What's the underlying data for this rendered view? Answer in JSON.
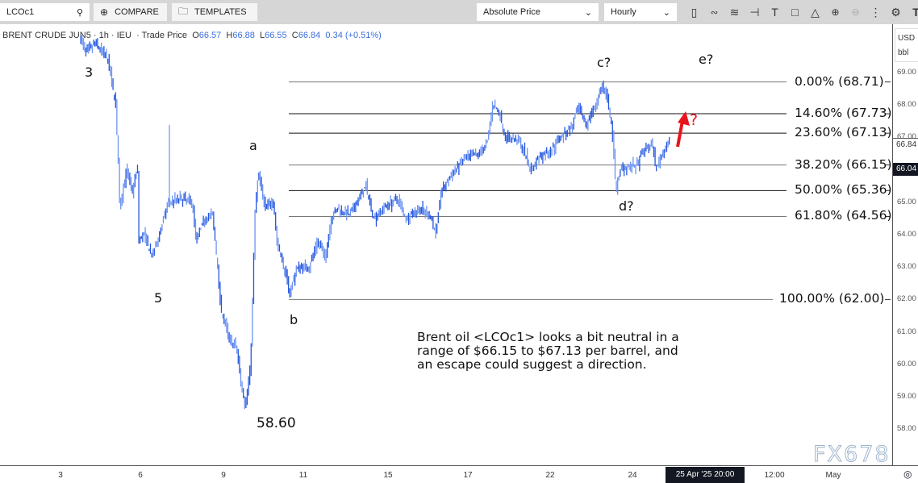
{
  "toolbar": {
    "symbol_value": "LCOc1",
    "compare_label": "COMPARE",
    "templates_label": "TEMPLATES",
    "price_mode": "Absolute Price",
    "interval": "Hourly",
    "tool_icons": [
      "candlestick-icon",
      "indicators-icon",
      "studies-icon",
      "drawing-icon",
      "text-icon",
      "shapes-icon",
      "pattern-icon",
      "zoom-in-icon",
      "zoom-out-icon",
      "more-icon",
      "settings-icon",
      "logo-icon"
    ]
  },
  "legend": {
    "name": "BRENT CRUDE JUN5",
    "interval": "1h",
    "exchange": "IEU",
    "price_type": "Trade Price",
    "open_label": "O",
    "open": "66.57",
    "high_label": "H",
    "high": "66.88",
    "low_label": "L",
    "low": "66.55",
    "close_label": "C",
    "close": "66.84",
    "change": "0.34 (+0.51%)"
  },
  "colors": {
    "candle": "#2456e0",
    "candle_light": "#6d93f2",
    "fib_dark": "#111111",
    "fib_grey": "#777777",
    "arrow": "#e8141b",
    "last_price_badge": "#131722"
  },
  "chart_data": {
    "type": "candlestick",
    "ylim": [
      57.5,
      70.2
    ],
    "y_ticks": [
      "69.00",
      "68.00",
      "67.00",
      "65.00",
      "64.00",
      "63.00",
      "62.00",
      "61.00",
      "60.00",
      "59.00",
      "58.00"
    ],
    "y_unit": "USD",
    "y_unit2": "bbl",
    "last_price": "66.84",
    "crosshair_price": "66.04",
    "x_ticks": [
      "3",
      "6",
      "9",
      "11",
      "15",
      "17",
      "22",
      "24",
      "12:00",
      "May"
    ],
    "crosshair_time": "25 Apr '25  20:00",
    "price_path_approx": [
      [
        3.76,
        70.1
      ],
      [
        4.0,
        69.6
      ],
      [
        4.36,
        69.9
      ],
      [
        4.82,
        69.4
      ],
      [
        5.12,
        68.0
      ],
      [
        5.21,
        66.3
      ],
      [
        5.27,
        64.8
      ],
      [
        5.52,
        66.0
      ],
      [
        5.73,
        65.3
      ],
      [
        5.94,
        66.1
      ],
      [
        5.97,
        63.8
      ],
      [
        6.17,
        64.0
      ],
      [
        6.47,
        63.3
      ],
      [
        6.76,
        64.1
      ],
      [
        7.05,
        65.0
      ],
      [
        7.48,
        65.1
      ],
      [
        7.92,
        65.0
      ],
      [
        8.06,
        63.8
      ],
      [
        8.36,
        64.5
      ],
      [
        8.65,
        64.6
      ],
      [
        8.8,
        63.3
      ],
      [
        8.94,
        61.8
      ],
      [
        9.16,
        60.8
      ],
      [
        9.36,
        60.5
      ],
      [
        9.46,
        59.5
      ],
      [
        9.57,
        58.7
      ],
      [
        9.71,
        60.0
      ],
      [
        9.83,
        65.0
      ],
      [
        9.91,
        65.9
      ],
      [
        10.07,
        64.8
      ],
      [
        10.27,
        65.1
      ],
      [
        10.37,
        63.8
      ],
      [
        10.58,
        62.8
      ],
      [
        10.68,
        62.2
      ],
      [
        10.88,
        63.0
      ],
      [
        11.34,
        63.0
      ],
      [
        11.72,
        63.8
      ],
      [
        12.1,
        63.3
      ],
      [
        12.37,
        64.5
      ],
      [
        12.68,
        64.8
      ],
      [
        13.25,
        64.6
      ],
      [
        14.01,
        65.5
      ],
      [
        14.39,
        64.5
      ],
      [
        14.96,
        64.9
      ],
      [
        15.28,
        65.1
      ],
      [
        15.48,
        64.5
      ],
      [
        15.79,
        64.8
      ],
      [
        16.09,
        64.6
      ],
      [
        16.23,
        64.0
      ],
      [
        16.35,
        65.3
      ],
      [
        16.6,
        65.8
      ],
      [
        16.9,
        66.3
      ],
      [
        17.74,
        66.5
      ],
      [
        18.23,
        66.8
      ],
      [
        18.57,
        68.0
      ],
      [
        18.96,
        67.8
      ],
      [
        19.35,
        67.0
      ],
      [
        20.19,
        66.9
      ],
      [
        20.92,
        66.0
      ],
      [
        21.41,
        66.4
      ],
      [
        22.06,
        66.6
      ],
      [
        22.25,
        67.0
      ],
      [
        22.55,
        67.3
      ],
      [
        22.71,
        67.9
      ],
      [
        22.9,
        67.4
      ],
      [
        23.1,
        67.9
      ],
      [
        23.29,
        68.6
      ],
      [
        23.43,
        68.1
      ],
      [
        23.53,
        67.3
      ],
      [
        23.63,
        65.4
      ],
      [
        23.76,
        66.1
      ],
      [
        24.13,
        66.1
      ],
      [
        24.33,
        66.6
      ],
      [
        24.54,
        66.8
      ],
      [
        24.65,
        66.0
      ],
      [
        24.75,
        66.4
      ],
      [
        24.96,
        66.84
      ]
    ],
    "fibonacci": [
      {
        "label": "0.00% (68.71)",
        "price": 68.71,
        "style": "grey"
      },
      {
        "label": "14.60% (67.73)",
        "price": 67.73,
        "style": "dark"
      },
      {
        "label": "23.60% (67.13)",
        "price": 67.13,
        "style": "dark"
      },
      {
        "label": "38.20% (66.15)",
        "price": 66.15,
        "style": "grey"
      },
      {
        "label": "50.00% (65.36)",
        "price": 65.36,
        "style": "dark"
      },
      {
        "label": "61.80% (64.56)",
        "price": 64.56,
        "style": "grey"
      },
      {
        "label": "100.00% (62.00)",
        "price": 62.0,
        "style": "grey"
      }
    ],
    "annotations": {
      "wave3": "3",
      "wave5": "5",
      "wave_a": "a",
      "wave_b": "b",
      "low_value": "58.60",
      "wave_c": "c?",
      "wave_d": "d?",
      "wave_e": "e?",
      "arrow_question": "?"
    },
    "note": "Brent oil <LCOc1> looks a bit neutral in a\nrange of $66.15 to $67.13 per barrel, and\nan escape could suggest a direction."
  },
  "watermark": "FX678"
}
